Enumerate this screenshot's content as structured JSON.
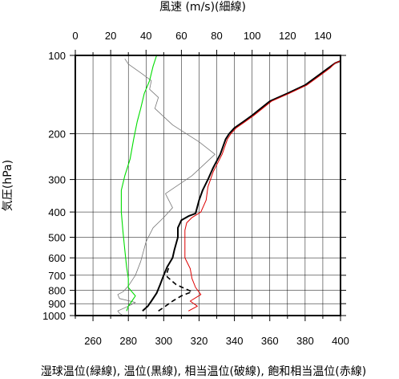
{
  "chart_data": {
    "type": "line",
    "title": "",
    "top_axis": {
      "label": "風速 (m/s)(細線)",
      "ticks": [
        0,
        20,
        40,
        60,
        80,
        100,
        120,
        140
      ],
      "range": [
        0,
        150
      ]
    },
    "bottom_axis": {
      "label": "湿球温位(緑線), 温位(黒線), 相当温位(破線), 飽和相当温位(赤線)",
      "ticks": [
        260,
        280,
        300,
        320,
        340,
        360,
        380,
        400
      ],
      "range": [
        250,
        400
      ]
    },
    "left_axis": {
      "label": "気圧(hPa)",
      "scale": "log",
      "reversed": true,
      "ticks": [
        100,
        200,
        300,
        400,
        500,
        600,
        700,
        800,
        900,
        1000
      ],
      "range": [
        1050,
        100
      ]
    },
    "grid": true,
    "series": [
      {
        "key": "wind_speed",
        "axis": "top",
        "color": "#777777",
        "dashed": false,
        "points": [
          [
            27,
            1000
          ],
          [
            25,
            980
          ],
          [
            24,
            960
          ],
          [
            30,
            920
          ],
          [
            34,
            890
          ],
          [
            25,
            860
          ],
          [
            24,
            830
          ],
          [
            27,
            810
          ],
          [
            30,
            770
          ],
          [
            34,
            700
          ],
          [
            37,
            620
          ],
          [
            40,
            520
          ],
          [
            44,
            460
          ],
          [
            50,
            420
          ],
          [
            55,
            385
          ],
          [
            51,
            340
          ],
          [
            66,
            290
          ],
          [
            79,
            240
          ],
          [
            70,
            215
          ],
          [
            55,
            185
          ],
          [
            45,
            160
          ],
          [
            47,
            145
          ],
          [
            42,
            135
          ],
          [
            43,
            125
          ],
          [
            38,
            118
          ],
          [
            30,
            108
          ],
          [
            28,
            103
          ]
        ]
      },
      {
        "key": "wet_bulb_potential_temperature",
        "axis": "bottom",
        "color": "#00dd00",
        "dashed": false,
        "points": [
          [
            279,
            960
          ],
          [
            280,
            920
          ],
          [
            282,
            880
          ],
          [
            284,
            840
          ],
          [
            282,
            810
          ],
          [
            280,
            780
          ],
          [
            280,
            720
          ],
          [
            279,
            650
          ],
          [
            278,
            560
          ],
          [
            277,
            480
          ],
          [
            276,
            400
          ],
          [
            276,
            330
          ],
          [
            278,
            290
          ],
          [
            281,
            250
          ],
          [
            283,
            210
          ],
          [
            285,
            180
          ],
          [
            287,
            160
          ],
          [
            289,
            140
          ],
          [
            292,
            125
          ],
          [
            294,
            110
          ],
          [
            296,
            100
          ]
        ]
      },
      {
        "key": "potential_temperature",
        "axis": "bottom",
        "color": "#000000",
        "dashed": false,
        "points": [
          [
            288,
            960
          ],
          [
            291,
            920
          ],
          [
            293,
            880
          ],
          [
            296,
            820
          ],
          [
            298,
            760
          ],
          [
            300,
            700
          ],
          [
            302,
            650
          ],
          [
            305,
            600
          ],
          [
            306,
            560
          ],
          [
            308,
            500
          ],
          [
            308,
            460
          ],
          [
            310,
            430
          ],
          [
            314,
            415
          ],
          [
            318,
            405
          ],
          [
            320,
            360
          ],
          [
            322,
            330
          ],
          [
            325,
            300
          ],
          [
            328,
            270
          ],
          [
            332,
            240
          ],
          [
            335,
            210
          ],
          [
            337,
            200
          ],
          [
            340,
            190
          ],
          [
            345,
            180
          ],
          [
            350,
            170
          ],
          [
            360,
            150
          ],
          [
            370,
            140
          ],
          [
            380,
            130
          ],
          [
            387,
            120
          ],
          [
            393,
            112
          ],
          [
            397,
            107
          ],
          [
            400,
            105
          ]
        ]
      },
      {
        "key": "equivalent_potential_temperature",
        "axis": "bottom",
        "color": "#000000",
        "dashed": true,
        "points": [
          [
            297,
            960
          ],
          [
            301,
            920
          ],
          [
            305,
            880
          ],
          [
            310,
            840
          ],
          [
            316,
            810
          ],
          [
            307,
            760
          ],
          [
            302,
            710
          ],
          [
            302,
            680
          ],
          [
            303,
            650
          ]
        ]
      },
      {
        "key": "saturated_equivalent_potential_temperature",
        "axis": "bottom",
        "color": "#dd0000",
        "dashed": false,
        "points": [
          [
            314,
            960
          ],
          [
            319,
            920
          ],
          [
            315,
            880
          ],
          [
            321,
            830
          ],
          [
            318,
            780
          ],
          [
            316,
            720
          ],
          [
            315,
            660
          ],
          [
            312,
            600
          ],
          [
            312,
            530
          ],
          [
            312,
            470
          ],
          [
            313,
            440
          ],
          [
            316,
            420
          ],
          [
            321,
            400
          ],
          [
            324,
            360
          ],
          [
            325,
            320
          ],
          [
            328,
            280
          ],
          [
            333,
            240
          ],
          [
            336,
            210
          ],
          [
            338,
            200
          ],
          [
            341,
            190
          ],
          [
            346,
            180
          ],
          [
            351,
            170
          ],
          [
            361,
            150
          ],
          [
            371,
            140
          ],
          [
            381,
            130
          ],
          [
            388,
            120
          ],
          [
            394,
            112
          ],
          [
            397,
            107
          ],
          [
            400,
            105
          ]
        ]
      }
    ]
  }
}
